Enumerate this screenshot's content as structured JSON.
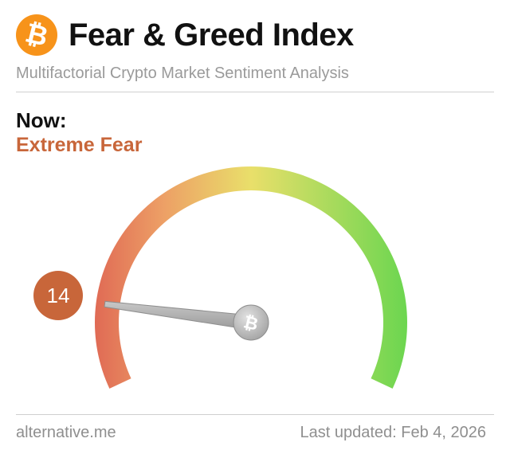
{
  "header": {
    "logo_icon": "bitcoin-icon",
    "logo_glyph": "₿",
    "title": "Fear & Greed Index",
    "subtitle": "Multifactorial Crypto Market Sentiment Analysis"
  },
  "now": {
    "label": "Now:",
    "classification": "Extreme Fear"
  },
  "gauge": {
    "value": 14,
    "min": 0,
    "max": 100,
    "hub_icon": "bitcoin-icon",
    "hub_glyph": "₿",
    "colors": {
      "fear": "#e06b55",
      "mid_low": "#eda066",
      "neutral": "#e9df6a",
      "greed": "#6cd650",
      "needle": "#b5b5b5",
      "badge": "#c8663a"
    }
  },
  "footer": {
    "source": "alternative.me",
    "updated_label": "Last updated:",
    "updated_date": "Feb 4, 2026"
  }
}
